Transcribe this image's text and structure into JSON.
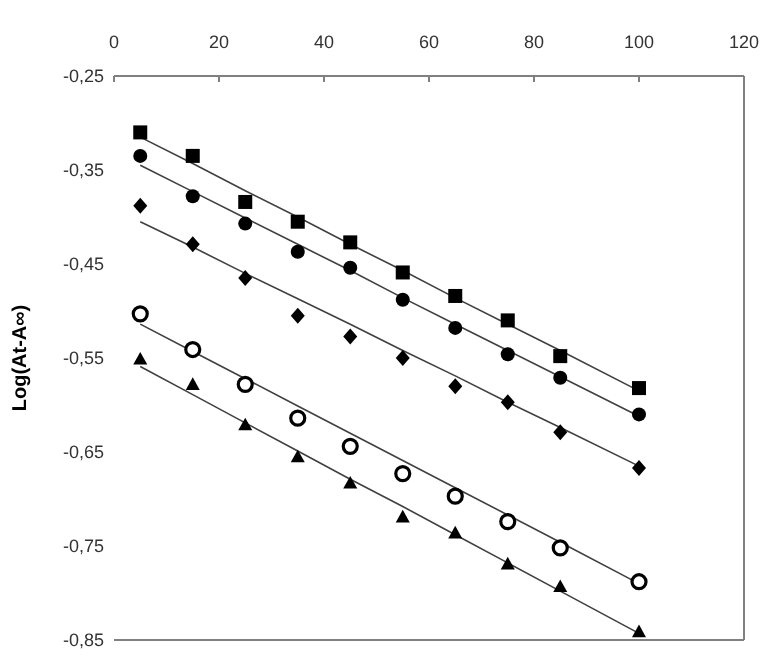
{
  "chart_data": {
    "type": "scatter",
    "ylabel": "Log(At-A∞)",
    "grid": false,
    "x": [
      5,
      15,
      25,
      35,
      45,
      55,
      65,
      75,
      85,
      100
    ],
    "xlim": [
      0,
      120
    ],
    "xticks": [
      0,
      20,
      40,
      60,
      80,
      100,
      120
    ],
    "ylim": [
      -0.85,
      -0.25
    ],
    "yticks": [
      {
        "value": -0.25,
        "label": "-0,25"
      },
      {
        "value": -0.35,
        "label": "-0,35"
      },
      {
        "value": -0.45,
        "label": "-0,45"
      },
      {
        "value": -0.55,
        "label": "-0,55"
      },
      {
        "value": -0.65,
        "label": "-0,65"
      },
      {
        "value": -0.75,
        "label": "-0,75"
      },
      {
        "value": -0.85,
        "label": "-0,85"
      }
    ],
    "series": [
      {
        "marker": "square",
        "color": "#000000",
        "values": [
          -0.31,
          -0.335,
          -0.384,
          -0.405,
          -0.427,
          -0.459,
          -0.484,
          -0.51,
          -0.548,
          -0.582
        ]
      },
      {
        "marker": "circle",
        "color": "#000000",
        "values": [
          -0.335,
          -0.378,
          -0.407,
          -0.437,
          -0.454,
          -0.488,
          -0.518,
          -0.546,
          -0.571,
          -0.61
        ]
      },
      {
        "marker": "diamond",
        "color": "#000000",
        "values": [
          -0.388,
          -0.429,
          -0.465,
          -0.505,
          -0.527,
          -0.55,
          -0.58,
          -0.597,
          -0.629,
          -0.667
        ]
      },
      {
        "marker": "open_circle",
        "color": "#000000",
        "values": [
          -0.503,
          -0.541,
          -0.578,
          -0.614,
          -0.644,
          -0.673,
          -0.697,
          -0.724,
          -0.752,
          -0.788
        ]
      },
      {
        "marker": "triangle",
        "color": "#000000",
        "values": [
          -0.551,
          -0.578,
          -0.621,
          -0.655,
          -0.683,
          -0.719,
          -0.736,
          -0.769,
          -0.793,
          -0.841
        ]
      },
      {
        "type": "line",
        "marker": "none",
        "line_style": "solid",
        "color": "#404040",
        "values": [
          -0.315,
          -0.343,
          -0.372,
          -0.4,
          -0.429,
          -0.457,
          -0.486,
          -0.514,
          -0.542,
          -0.585
        ]
      },
      {
        "type": "line",
        "marker": "none",
        "line_style": "solid",
        "color": "#404040",
        "values": [
          -0.345,
          -0.373,
          -0.401,
          -0.429,
          -0.457,
          -0.486,
          -0.514,
          -0.542,
          -0.57,
          -0.612
        ]
      },
      {
        "type": "line",
        "marker": "none",
        "line_style": "solid",
        "color": "#404040",
        "values": [
          -0.405,
          -0.432,
          -0.46,
          -0.487,
          -0.514,
          -0.542,
          -0.569,
          -0.597,
          -0.624,
          -0.665
        ]
      },
      {
        "type": "line",
        "marker": "none",
        "line_style": "solid",
        "color": "#404040",
        "values": [
          -0.514,
          -0.543,
          -0.572,
          -0.601,
          -0.63,
          -0.659,
          -0.688,
          -0.717,
          -0.746,
          -0.79
        ]
      },
      {
        "type": "line",
        "marker": "none",
        "line_style": "solid",
        "color": "#404040",
        "values": [
          -0.559,
          -0.589,
          -0.619,
          -0.649,
          -0.679,
          -0.708,
          -0.738,
          -0.768,
          -0.798,
          -0.843
        ]
      }
    ]
  }
}
